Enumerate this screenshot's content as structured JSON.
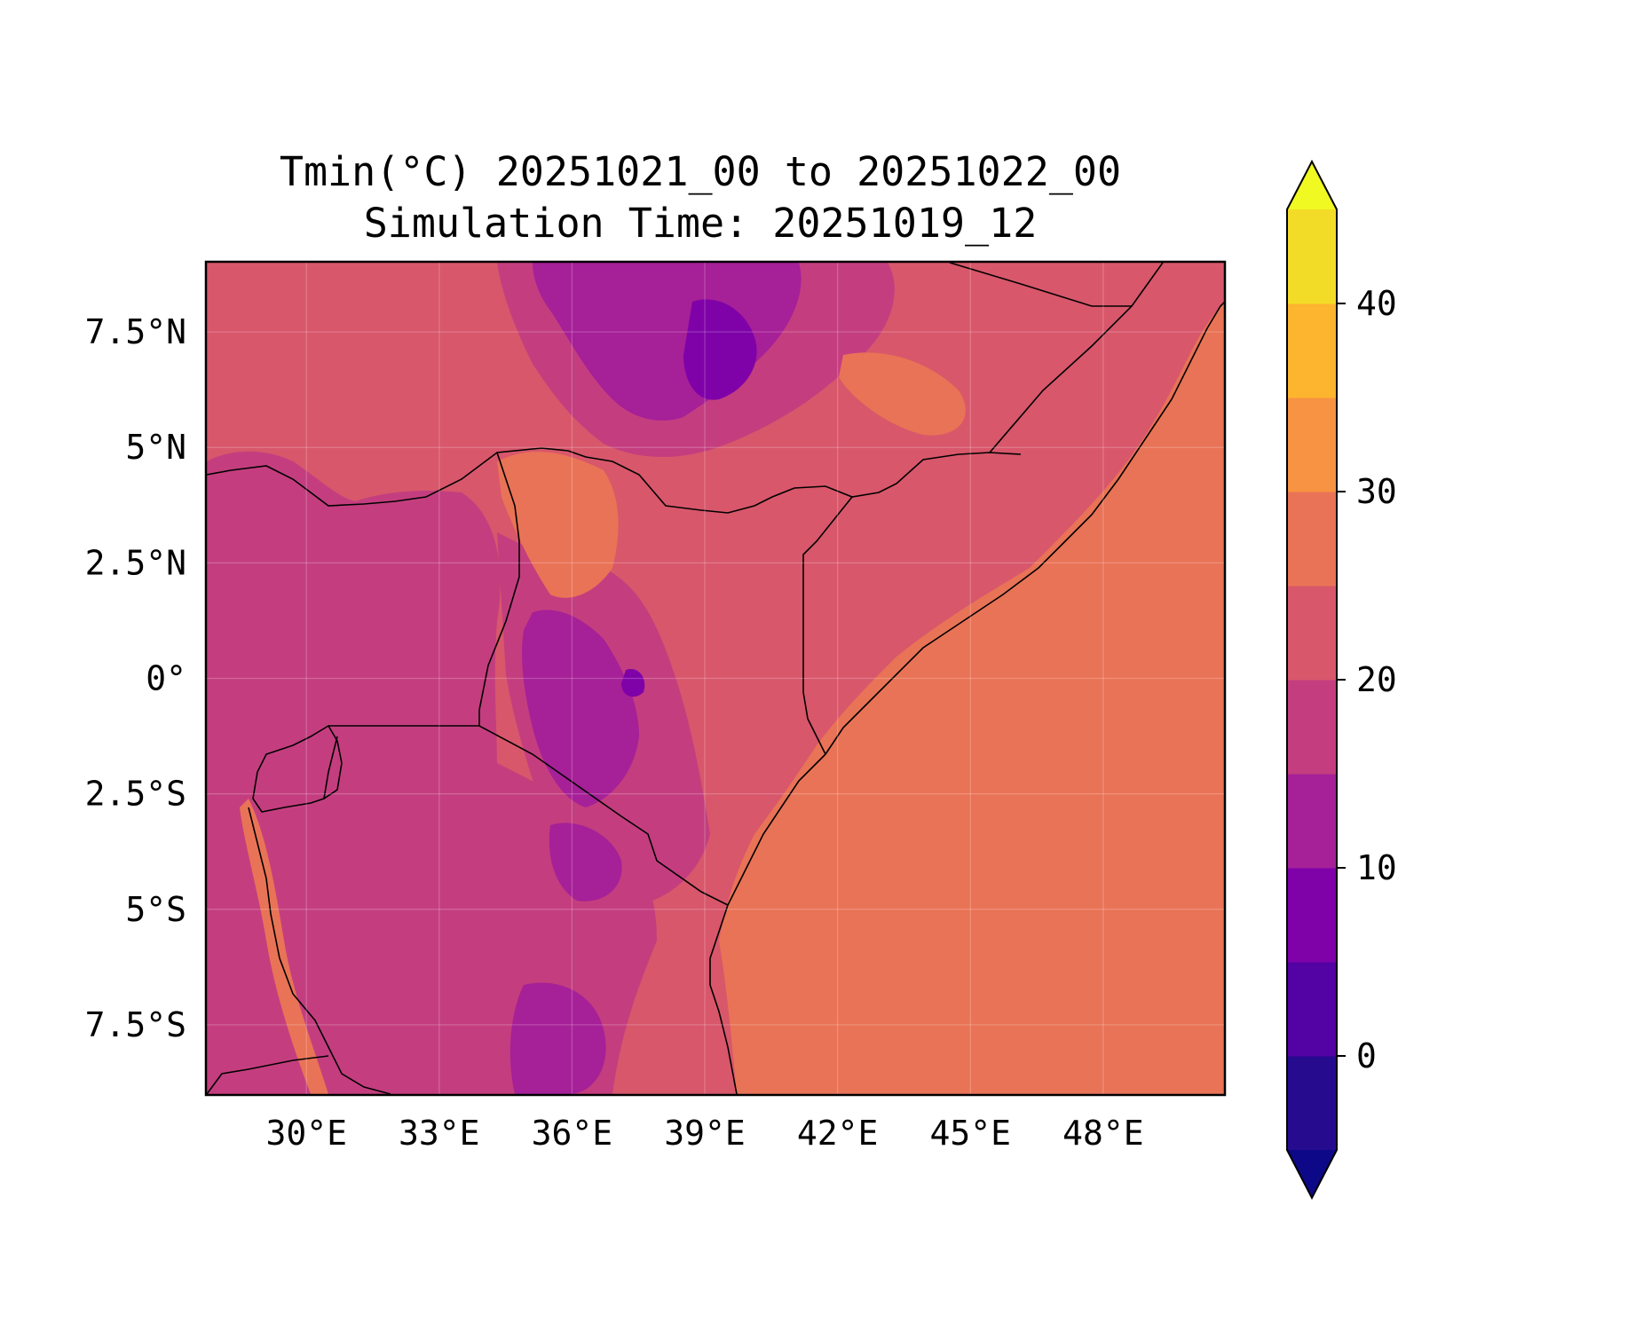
{
  "title": {
    "line1": "Tmin(°C) 20251021_00 to 20251022_00",
    "line2": "Simulation Time: 20251019_12"
  },
  "map": {
    "variable": "Tmin",
    "units": "°C",
    "extent_lon": [
      27.75,
      50.75
    ],
    "extent_lat": [
      -9,
      9
    ],
    "x_ticks": [
      {
        "value": 30,
        "label": "30°E"
      },
      {
        "value": 33,
        "label": "33°E"
      },
      {
        "value": 36,
        "label": "36°E"
      },
      {
        "value": 39,
        "label": "39°E"
      },
      {
        "value": 42,
        "label": "42°E"
      },
      {
        "value": 45,
        "label": "45°E"
      },
      {
        "value": 48,
        "label": "48°E"
      }
    ],
    "y_ticks": [
      {
        "value": 7.5,
        "label": "7.5°N"
      },
      {
        "value": 5,
        "label": "5°N"
      },
      {
        "value": 2.5,
        "label": "2.5°N"
      },
      {
        "value": 0,
        "label": "0°"
      },
      {
        "value": -2.5,
        "label": "2.5°S"
      },
      {
        "value": -5,
        "label": "5°S"
      },
      {
        "value": -7.5,
        "label": "7.5°S"
      }
    ],
    "gridlines": true
  },
  "colorbar": {
    "levels": [
      -5,
      0,
      5,
      10,
      15,
      20,
      25,
      30,
      35,
      40,
      45
    ],
    "colors": [
      "#260b8f",
      "#5302a3",
      "#7f02a8",
      "#a62098",
      "#c43e7f",
      "#d8576b",
      "#e97356",
      "#f79342",
      "#fdb42f",
      "#f3dc27"
    ],
    "under_color": "#0d0887",
    "over_color": "#f0f921",
    "extend": "both",
    "ticks": [
      {
        "value": 0,
        "label": "0"
      },
      {
        "value": 10,
        "label": "10"
      },
      {
        "value": 20,
        "label": "20"
      },
      {
        "value": 30,
        "label": "30"
      },
      {
        "value": 40,
        "label": "40"
      }
    ]
  }
}
